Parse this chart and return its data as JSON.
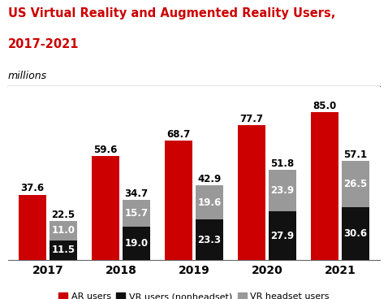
{
  "title_line1": "US Virtual Reality and Augmented Reality Users,",
  "title_line2": "2017-2021",
  "subtitle": "millions",
  "years": [
    "2017",
    "2018",
    "2019",
    "2020",
    "2021"
  ],
  "ar_users": [
    37.6,
    59.6,
    68.7,
    77.7,
    85.0
  ],
  "vr_nonheadset": [
    11.5,
    19.0,
    23.3,
    27.9,
    30.6
  ],
  "vr_headset": [
    11.0,
    15.7,
    19.6,
    23.9,
    26.5
  ],
  "vr_total": [
    22.5,
    34.7,
    42.9,
    51.8,
    57.1
  ],
  "ar_color": "#cc0000",
  "vr_nonheadset_color": "#111111",
  "vr_headset_color": "#999999",
  "background_color": "#ffffff",
  "bar_width": 0.38,
  "bar_gap": 0.04,
  "ylim": [
    0,
    100
  ],
  "label_fontsize": 8.5,
  "title_color": "#cc0000",
  "title_fontsize": 10.5,
  "subtitle_fontsize": 9,
  "xtick_fontsize": 10,
  "legend_labels": [
    "AR users",
    "VR users (nonheadset)",
    "VR headset users"
  ],
  "legend_fontsize": 8
}
